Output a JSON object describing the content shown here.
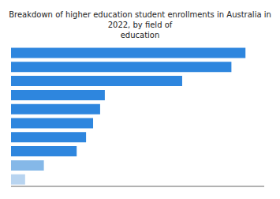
{
  "chart_data": {
    "type": "bar",
    "orientation": "horizontal",
    "title": "Breakdown of higher education student enrollments in Australia in 2022, by field of\neducation",
    "categories": [
      null,
      null,
      null,
      null,
      null,
      null,
      null,
      null,
      null,
      null
    ],
    "values": [
      100,
      94,
      73,
      40,
      38,
      35,
      32,
      28,
      14,
      6
    ],
    "colors": [
      "#2e86de",
      "#2e86de",
      "#2e86de",
      "#2e86de",
      "#2e86de",
      "#2e86de",
      "#2e86de",
      "#2e86de",
      "#85b8e8",
      "#b8d4f0"
    ],
    "xlim": [
      0,
      108
    ],
    "xticks": [],
    "tick_labels": false
  }
}
